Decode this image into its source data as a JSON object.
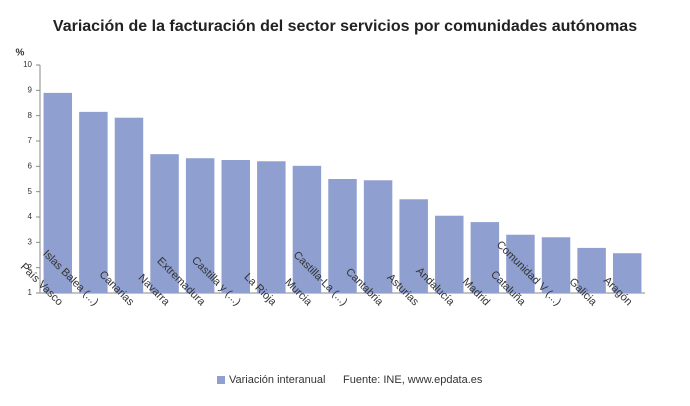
{
  "chart_data": {
    "type": "bar",
    "title": "Variación de la facturación del sector servicios por comunidades autónomas",
    "y_label": "%",
    "categories": [
      "País Vasco",
      "Islas Balea (...)",
      "Canarias",
      "Navarra",
      "Extremadura",
      "Castilla y (...)",
      "La Rioja",
      "Murcia",
      "Castilla-La (...)",
      "Cantabria",
      "Asturias",
      "Andalucía",
      "Madrid",
      "Cataluña",
      "Comunidad V (...)",
      "Galicia",
      "Aragón"
    ],
    "series": [
      {
        "name": "Variación interanual",
        "color": "#8f9fcf",
        "values": [
          8.9,
          8.15,
          7.92,
          6.48,
          6.32,
          6.25,
          6.2,
          6.02,
          5.5,
          5.45,
          4.7,
          4.05,
          3.8,
          3.3,
          3.2,
          2.78,
          2.57
        ]
      }
    ],
    "ylim": [
      1,
      10
    ],
    "yticks": [
      1,
      2,
      3,
      4,
      5,
      6,
      7,
      8,
      9,
      10
    ],
    "source": "Fuente: INE, www.epdata.es"
  }
}
